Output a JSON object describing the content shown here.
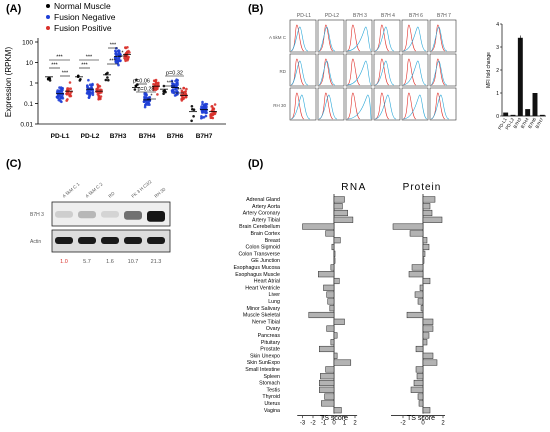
{
  "panels": {
    "a": "(A)",
    "b": "(B)",
    "c": "(C)",
    "d": "(D)"
  },
  "panel_a": {
    "legend": [
      {
        "label": "Normal Muscle",
        "color": "#000000"
      },
      {
        "label": "Fusion Negative",
        "color": "#1f3fd6"
      },
      {
        "label": "Fusion Positive",
        "color": "#d9312b"
      }
    ],
    "ylabel": "Expression (RPKM)",
    "yticks": [
      "100",
      "10",
      "1",
      "0.1",
      "0.01"
    ],
    "categories": [
      "PD-L1",
      "PD-L2",
      "B7H3",
      "B7H4",
      "B7H6",
      "B7H7"
    ],
    "annotations": [
      "***",
      "***",
      "***",
      "***",
      "***",
      "***",
      "*",
      "p=0.06",
      "p=0.32",
      "p=0.28",
      "***",
      "***",
      "**",
      "*"
    ]
  },
  "panel_b": {
    "col_headers": [
      "PD-L1",
      "PD-L2",
      "B7H 3",
      "B7H 4",
      "B7H 6",
      "B7H 7"
    ],
    "row_labels": [
      "A 5kM C",
      "RD",
      "RH 30"
    ],
    "bar_ylabel": "MFI fold change",
    "bar_yticks": [
      "4",
      "3",
      "2",
      "1",
      "0"
    ]
  },
  "panel_c": {
    "lanes": [
      "A 5kM C 1",
      "A 5kM C 2",
      "RD",
      "FK 3 H C3/2",
      "RH 30"
    ],
    "bands": [
      "B7H 3",
      "Actin"
    ],
    "values": [
      "1.0",
      "5.7",
      "1.6",
      "10.7",
      "21.3"
    ]
  },
  "panel_d": {
    "titles": [
      "RNA",
      "Protein"
    ],
    "xlabel": "TS score",
    "xticks_rna": [
      "-3",
      "-2",
      "-1",
      "0",
      "1",
      "2"
    ],
    "xticks_protein": [
      "-2",
      "0",
      "2"
    ],
    "tissues": [
      "Adrenal Gland",
      "Artery Aorta",
      "Artery Coronary",
      "Artery Tibial",
      "Brain Cerebellum",
      "Brain Cortex",
      "Breast",
      "Colon Sigmoid",
      "Colon Transverse",
      "GE Junction",
      "Esophagus Mucosa",
      "Esophagus Muscle",
      "Heart Atrial",
      "Heart Ventricle",
      "Liver",
      "Lung",
      "Minor Salivary",
      "Muscle Skeletal",
      "Nerve Tibial",
      "Ovary",
      "Pancreas",
      "Pituitary",
      "Prostate",
      "Skin Unexpo",
      "Skin SunExpo",
      "Small Intestine",
      "Spleen",
      "Stomach",
      "Testis",
      "Thyroid",
      "Uterus",
      "Vagina"
    ]
  },
  "chart_data": [
    {
      "type": "scatter",
      "panel": "A",
      "ylabel": "Expression (RPKM)",
      "yscale": "log",
      "ylim": [
        0.01,
        100
      ],
      "categories": [
        "PD-L1",
        "PD-L2",
        "B7H3",
        "B7H4",
        "B7H6",
        "B7H7"
      ],
      "series": [
        {
          "name": "Normal Muscle",
          "medians": [
            2.0,
            2.0,
            2.5,
            0.6,
            0.5,
            0.04
          ]
        },
        {
          "name": "Fusion Negative",
          "medians": [
            0.3,
            0.5,
            20,
            0.15,
            0.6,
            0.05
          ]
        },
        {
          "name": "Fusion Positive",
          "medians": [
            0.4,
            0.4,
            25,
            0.7,
            0.25,
            0.04
          ]
        }
      ]
    },
    {
      "type": "bar",
      "panel": "B",
      "ylabel": "MFI fold change",
      "categories": [
        "PD-L1",
        "PD-L2",
        "B7H3",
        "B7H4",
        "B7H6",
        "B7H7"
      ],
      "values": [
        0.15,
        0.05,
        3.4,
        0.3,
        1.0,
        0.05
      ],
      "ylim": [
        0,
        4
      ]
    },
    {
      "type": "bar",
      "panel": "D-RNA",
      "orientation": "horizontal",
      "xlabel": "TS score",
      "xlim": [
        -3.5,
        2.2
      ],
      "categories": [
        "Adrenal Gland",
        "Artery Aorta",
        "Artery Coronary",
        "Artery Tibial",
        "Brain Cerebellum",
        "Brain Cortex",
        "Breast",
        "Colon Sigmoid",
        "Colon Transverse",
        "GE Junction",
        "Esophagus Mucosa",
        "Esophagus Muscle",
        "Heart Atrial",
        "Heart Ventricle",
        "Liver",
        "Lung",
        "Minor Salivary",
        "Muscle Skeletal",
        "Nerve Tibial",
        "Ovary",
        "Pancreas",
        "Pituitary",
        "Prostate",
        "Skin Unexpo",
        "Skin SunExpo",
        "Small Intestine",
        "Spleen",
        "Stomach",
        "Testis",
        "Thyroid",
        "Uterus",
        "Vagina"
      ],
      "values": [
        1.0,
        0.8,
        1.3,
        1.8,
        -3.0,
        -0.8,
        0.6,
        -0.2,
        0.1,
        0.1,
        -0.3,
        -1.5,
        0.5,
        -1.0,
        -0.7,
        -0.6,
        -0.4,
        -2.4,
        1.0,
        -0.7,
        0.3,
        -0.3,
        -1.4,
        0.3,
        1.6,
        -0.8,
        -1.3,
        -1.4,
        -1.4,
        -0.9,
        -1.2,
        0.7
      ]
    },
    {
      "type": "bar",
      "panel": "D-Protein",
      "orientation": "horizontal",
      "xlabel": "TS score",
      "xlim": [
        -3.2,
        2.2
      ],
      "categories": [
        "Adrenal Gland",
        "Artery Aorta",
        "Artery Coronary",
        "Artery Tibial",
        "Brain Cerebellum",
        "Brain Cortex",
        "Breast",
        "Colon Sigmoid",
        "Colon Transverse",
        "GE Junction",
        "Esophagus Mucosa",
        "Esophagus Muscle",
        "Heart Atrial",
        "Heart Ventricle",
        "Liver",
        "Lung",
        "Minor Salivary",
        "Muscle Skeletal",
        "Nerve Tibial",
        "Ovary",
        "Pancreas",
        "Pituitary",
        "Prostate",
        "Skin Unexpo",
        "Skin SunExpo",
        "Small Intestine",
        "Spleen",
        "Stomach",
        "Testis",
        "Thyroid",
        "Uterus",
        "Vagina"
      ],
      "values": [
        1.2,
        0.7,
        0.9,
        1.9,
        -3.0,
        -1.3,
        0.4,
        0.6,
        0.2,
        0.1,
        -1.1,
        -1.4,
        0.7,
        -0.3,
        -0.8,
        -0.5,
        -0.2,
        -1.6,
        1.0,
        1.0,
        0.6,
        0.4,
        -0.7,
        1.0,
        1.4,
        -0.7,
        -0.6,
        -0.9,
        -1.2,
        -0.5,
        -0.4,
        0.7
      ]
    }
  ]
}
